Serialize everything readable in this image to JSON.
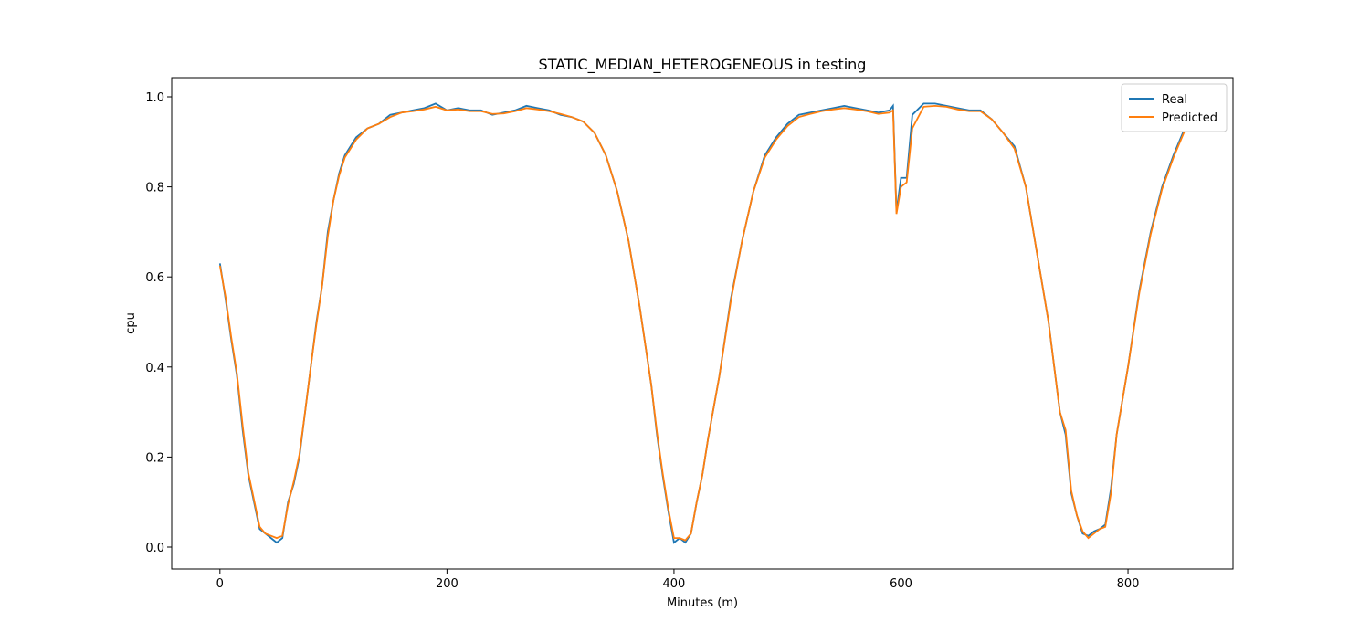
{
  "chart_data": {
    "type": "line",
    "title": "STATIC_MEDIAN_HETEROGENEOUS in testing",
    "xlabel": "Minutes (m)",
    "ylabel": "cpu",
    "x": [
      0,
      5,
      10,
      15,
      20,
      25,
      30,
      35,
      40,
      45,
      50,
      55,
      60,
      65,
      70,
      75,
      80,
      85,
      90,
      95,
      100,
      105,
      110,
      120,
      130,
      140,
      150,
      160,
      170,
      180,
      190,
      200,
      210,
      220,
      230,
      240,
      250,
      260,
      270,
      280,
      290,
      300,
      310,
      320,
      330,
      340,
      350,
      360,
      370,
      380,
      385,
      390,
      395,
      400,
      405,
      410,
      415,
      420,
      425,
      430,
      440,
      450,
      460,
      470,
      480,
      490,
      500,
      510,
      520,
      530,
      540,
      550,
      560,
      570,
      580,
      590,
      593,
      596,
      600,
      605,
      610,
      620,
      630,
      640,
      650,
      660,
      670,
      680,
      690,
      700,
      710,
      720,
      730,
      740,
      745,
      750,
      755,
      760,
      765,
      770,
      775,
      780,
      785,
      790,
      800,
      810,
      820,
      830,
      840,
      850
    ],
    "series": [
      {
        "name": "Real",
        "color": "#1f77b4",
        "values": [
          0.63,
          0.55,
          0.46,
          0.38,
          0.26,
          0.16,
          0.1,
          0.04,
          0.03,
          0.02,
          0.01,
          0.02,
          0.1,
          0.14,
          0.2,
          0.3,
          0.4,
          0.5,
          0.58,
          0.7,
          0.77,
          0.83,
          0.87,
          0.91,
          0.93,
          0.94,
          0.96,
          0.965,
          0.97,
          0.975,
          0.985,
          0.97,
          0.975,
          0.97,
          0.97,
          0.96,
          0.965,
          0.97,
          0.98,
          0.975,
          0.97,
          0.96,
          0.955,
          0.945,
          0.92,
          0.87,
          0.79,
          0.68,
          0.53,
          0.36,
          0.25,
          0.16,
          0.08,
          0.01,
          0.02,
          0.01,
          0.03,
          0.1,
          0.16,
          0.24,
          0.38,
          0.55,
          0.68,
          0.79,
          0.87,
          0.91,
          0.94,
          0.96,
          0.965,
          0.97,
          0.975,
          0.98,
          0.975,
          0.97,
          0.965,
          0.97,
          0.98,
          0.745,
          0.82,
          0.82,
          0.96,
          0.985,
          0.985,
          0.98,
          0.975,
          0.97,
          0.97,
          0.95,
          0.92,
          0.89,
          0.8,
          0.65,
          0.5,
          0.3,
          0.25,
          0.12,
          0.07,
          0.03,
          0.025,
          0.035,
          0.04,
          0.05,
          0.13,
          0.25,
          0.4,
          0.57,
          0.7,
          0.8,
          0.87,
          0.93
        ]
      },
      {
        "name": "Predicted",
        "color": "#ff7f0e",
        "values": [
          0.625,
          0.555,
          0.465,
          0.385,
          0.27,
          0.165,
          0.105,
          0.045,
          0.03,
          0.025,
          0.02,
          0.025,
          0.095,
          0.145,
          0.205,
          0.3,
          0.4,
          0.495,
          0.58,
          0.69,
          0.77,
          0.825,
          0.865,
          0.905,
          0.93,
          0.94,
          0.955,
          0.965,
          0.968,
          0.972,
          0.978,
          0.97,
          0.972,
          0.968,
          0.968,
          0.962,
          0.963,
          0.968,
          0.975,
          0.972,
          0.968,
          0.962,
          0.955,
          0.945,
          0.92,
          0.87,
          0.79,
          0.68,
          0.53,
          0.36,
          0.255,
          0.165,
          0.085,
          0.02,
          0.02,
          0.015,
          0.03,
          0.1,
          0.16,
          0.24,
          0.38,
          0.545,
          0.68,
          0.79,
          0.865,
          0.905,
          0.935,
          0.955,
          0.962,
          0.968,
          0.972,
          0.975,
          0.972,
          0.968,
          0.962,
          0.965,
          0.97,
          0.74,
          0.8,
          0.81,
          0.93,
          0.978,
          0.98,
          0.978,
          0.972,
          0.968,
          0.968,
          0.95,
          0.92,
          0.885,
          0.8,
          0.65,
          0.5,
          0.3,
          0.26,
          0.125,
          0.07,
          0.035,
          0.02,
          0.03,
          0.04,
          0.045,
          0.12,
          0.25,
          0.4,
          0.565,
          0.695,
          0.795,
          0.865,
          0.925
        ]
      }
    ],
    "xlim": [
      -42.5,
      892.5
    ],
    "ylim": [
      -0.0487,
      1.0426
    ],
    "xticks": [
      0,
      200,
      400,
      600,
      800
    ],
    "yticks": [
      {
        "value": 0,
        "label": "0.0"
      },
      0.2,
      0.4,
      0.6,
      0.8,
      {
        "value": 1,
        "label": "1.0"
      }
    ],
    "legend": "upper right"
  }
}
